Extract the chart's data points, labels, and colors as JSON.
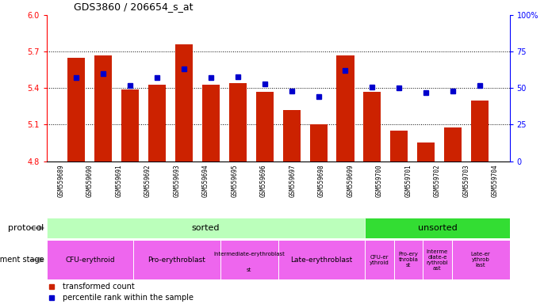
{
  "title": "GDS3860 / 206654_s_at",
  "samples": [
    "GSM559689",
    "GSM559690",
    "GSM559691",
    "GSM559692",
    "GSM559693",
    "GSM559694",
    "GSM559695",
    "GSM559696",
    "GSM559697",
    "GSM559698",
    "GSM559699",
    "GSM559700",
    "GSM559701",
    "GSM559702",
    "GSM559703",
    "GSM559704"
  ],
  "transformed_count": [
    5.65,
    5.67,
    5.39,
    5.43,
    5.76,
    5.43,
    5.44,
    5.37,
    5.22,
    5.1,
    5.67,
    5.37,
    5.05,
    4.95,
    5.08,
    5.3
  ],
  "percentile_rank": [
    57,
    60,
    52,
    57,
    63,
    57,
    58,
    53,
    48,
    44,
    62,
    51,
    50,
    47,
    48,
    52
  ],
  "ylim_left": [
    4.8,
    6.0
  ],
  "ylim_right": [
    0,
    100
  ],
  "yticks_left": [
    4.8,
    5.1,
    5.4,
    5.7,
    6.0
  ],
  "yticks_right": [
    0,
    25,
    50,
    75,
    100
  ],
  "bar_color": "#cc2200",
  "dot_color": "#0000cc",
  "xtick_bg": "#d0d0d0",
  "protocol_sorted_color": "#bbffbb",
  "protocol_unsorted_color": "#33dd33",
  "dev_stage_color": "#ee66ee",
  "sorted_count": 11,
  "unsorted_count": 5,
  "dev_stage_groups_sorted": [
    {
      "label": "CFU-erythroid",
      "span": 3
    },
    {
      "label": "Pro-erythroblast",
      "span": 3
    },
    {
      "label": "Intermediate-erythroblast\nst",
      "span": 2
    },
    {
      "label": "Late-erythroblast",
      "span": 3
    }
  ],
  "dev_stage_groups_unsorted": [
    {
      "label": "CFU-er\nythroid",
      "span": 1
    },
    {
      "label": "Pro-ery\nthrobla\nst",
      "span": 1
    },
    {
      "label": "Interme\ndiate-e\nrythrobl\nast",
      "span": 1
    },
    {
      "label": "Late-er\nythrob\nlast",
      "span": 2
    }
  ]
}
